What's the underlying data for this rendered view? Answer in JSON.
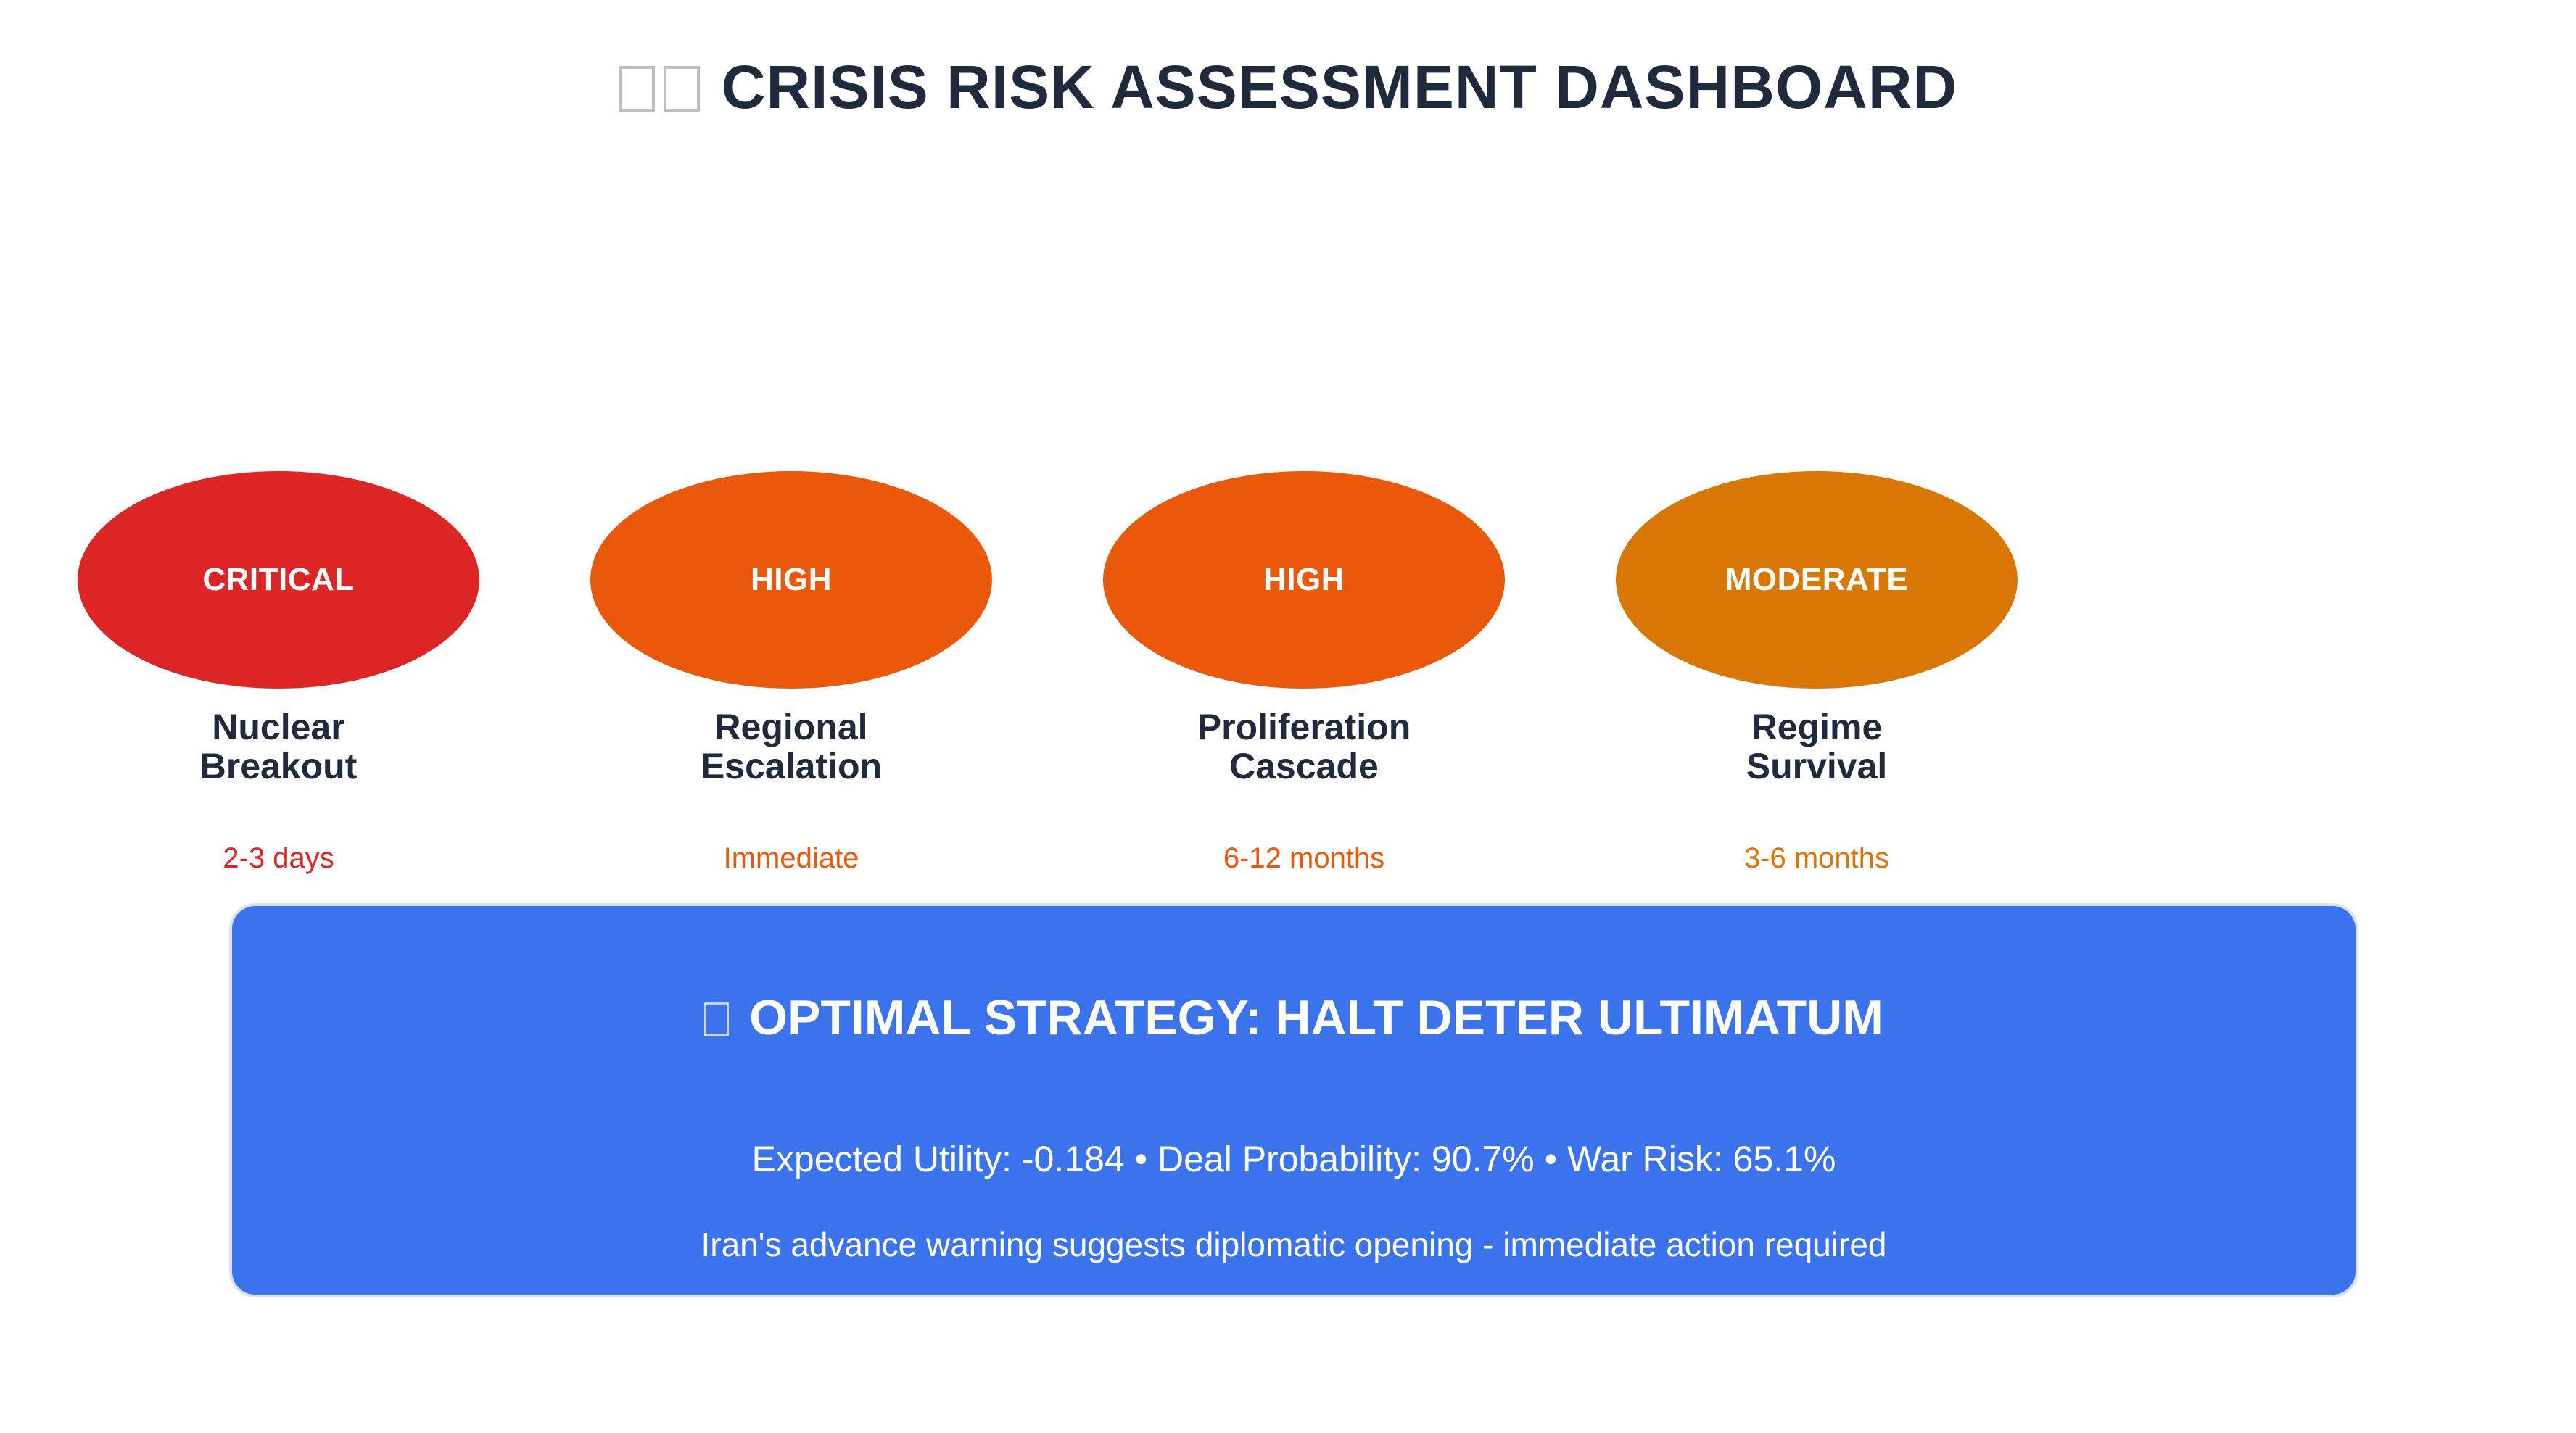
{
  "header": {
    "title": "CRISIS RISK ASSESSMENT DASHBOARD"
  },
  "risks": [
    {
      "level": "CRITICAL",
      "name": "Nuclear\nBreakout",
      "timeframe": "2-3 days",
      "color": "#dc2626"
    },
    {
      "level": "HIGH",
      "name": "Regional\nEscalation",
      "timeframe": "Immediate",
      "color": "#ea580c"
    },
    {
      "level": "HIGH",
      "name": "Proliferation\nCascade",
      "timeframe": "6-12 months",
      "color": "#ea580c"
    },
    {
      "level": "MODERATE",
      "name": "Regime\nSurvival",
      "timeframe": "3-6 months",
      "color": "#d97706"
    }
  ],
  "strategy": {
    "title": "OPTIMAL STRATEGY: HALT DETER ULTIMATUM",
    "metrics": "Expected Utility: -0.184 • Deal Probability: 90.7% • War Risk: 65.1%",
    "note": "Iran's advance warning suggests diplomatic opening - immediate action required",
    "background_color": "#3b73ec"
  }
}
